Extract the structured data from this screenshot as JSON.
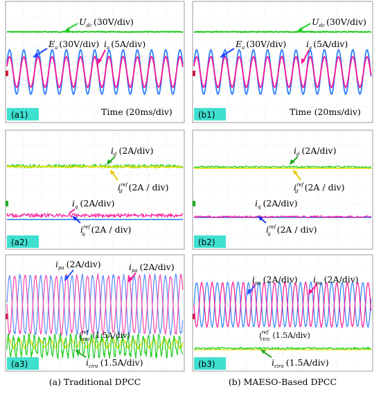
{
  "captions": {
    "left": "(a) Traditional DPCC",
    "right": "(b) MAESO-Based DPCC"
  },
  "colors": {
    "udc": "#22cc22",
    "ea": "#2a7fff",
    "ia": "#ff1493",
    "yellow": "#e8e000",
    "tag_bg": "#3fe0d0"
  },
  "panels": {
    "a1": {
      "tag": "(a1)",
      "udc_sym": "U",
      "udc_sub": "dc",
      "udc_scale": "(30V/div)",
      "ea_sym": "E",
      "ea_sub": "a",
      "ea_scale": "(30V/div)",
      "ia_sym": "i",
      "ia_sub": "a",
      "ia_scale": "(5A/div)",
      "time": "Time (20ms/div)"
    },
    "b1": {
      "tag": "(b1)",
      "udc_sym": "U",
      "udc_sub": "dc",
      "udc_scale": "(30V/div)",
      "ea_sym": "E",
      "ea_sub": "a",
      "ea_scale": "(30V/div)",
      "ia_sym": "i",
      "ia_sub": "a",
      "ia_scale": "(5A/div)",
      "time": "Time (20ms/div)"
    },
    "a2": {
      "tag": "(a2)",
      "id_sym": "i",
      "id_sub": "d",
      "id_scale": "(2A/div)",
      "idref_sym": "i",
      "idref_sub": "d",
      "idref_sup": "ref",
      "idref_scale": "(2A / div)",
      "iq_sym": "i",
      "iq_sub": "q",
      "iq_scale": "(2A/div)",
      "iqref_sym": "i",
      "iqref_sub": "q",
      "iqref_sup": "ref",
      "iqref_scale": "(2A / div)"
    },
    "b2": {
      "tag": "(b2)",
      "id_sym": "i",
      "id_sub": "d",
      "id_scale": "(2A/div)",
      "idref_sym": "i",
      "idref_sub": "d",
      "idref_sup": "ref",
      "idref_scale": "(2A / div)",
      "iq_sym": "i",
      "iq_sub": "q",
      "iq_scale": "(2A/div)",
      "iqref_sym": "i",
      "iqref_sub": "q",
      "iqref_sup": "ref",
      "iqref_scale": "(2A / div)"
    },
    "a3": {
      "tag": "(a3)",
      "ipa_sym": "i",
      "ipa_sub": "pa",
      "ipa_scale": "(2A/div)",
      "ipa2_sym": "i",
      "ipa2_sub": "pa",
      "ipa2_scale": "(2A/div)",
      "icref_sym": "i",
      "icref_sub": "cira",
      "icref_sup": "ref",
      "icref_scale": "(1.5A/div)",
      "ic_sym": "i",
      "ic_sub": "cira",
      "ic_scale": "(1.5A/div)"
    },
    "b3": {
      "tag": "(b3)",
      "ipa_sym": "i",
      "ipa_sub": "pa",
      "ipa_scale": "(2A/div)",
      "ipa2_sym": "i",
      "ipa2_sub": "pa",
      "ipa2_scale": "(2A/div)",
      "icref_sym": "i",
      "icref_sub": "cira",
      "icref_sup": "ref",
      "icref_scale": "(1.5A/div)",
      "ic_sym": "i",
      "ic_sub": "cira",
      "ic_scale": "(1.5A/div)"
    }
  }
}
